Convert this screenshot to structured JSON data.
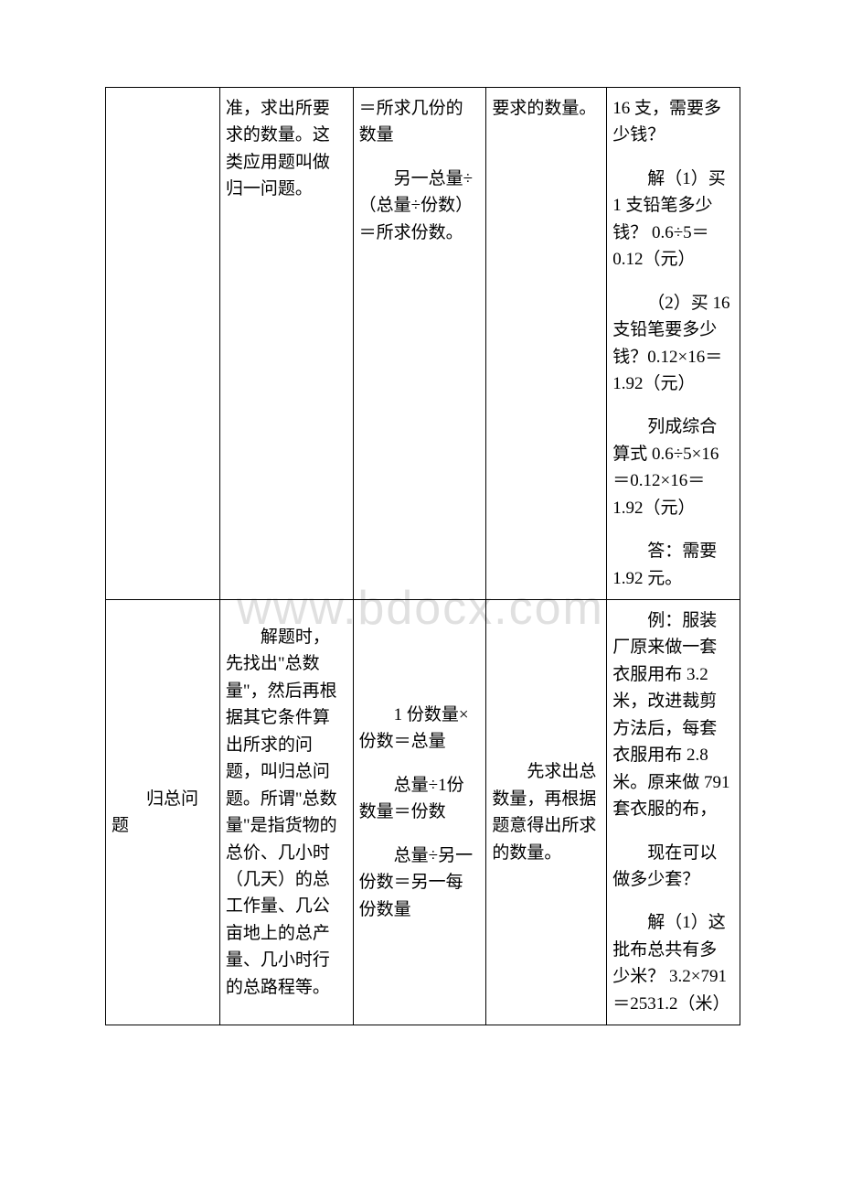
{
  "watermark": "www.bdocx.com",
  "table": {
    "row1": {
      "col1": "",
      "col2": {
        "p1": "准，求出所要求的数量。这类应用题叫做归一问题。"
      },
      "col3": {
        "p1": "＝所求几份的数量",
        "p2": "另一总量÷（总量÷份数）＝所求份数。"
      },
      "col4": {
        "p1": "要求的数量。"
      },
      "col5": {
        "p1": "16 支，需要多少钱？",
        "p2": "解（1）买 1 支铅笔多少钱？ 0.6÷5＝0.12（元）",
        "p3": "（2）买 16 支铅笔要多少钱？0.12×16＝1.92（元）",
        "p4": "列成综合算式 0.6÷5×16＝0.12×16＝1.92（元）",
        "p5": "答：需要 1.92 元。"
      }
    },
    "row2": {
      "col1": {
        "p1": "归总问题"
      },
      "col2": {
        "p1": "解题时，先找出\"总数量\"，然后再根据其它条件算出所求的问题，叫归总问题。所谓\"总数量\"是指货物的总价、几小时（几天）的总工作量、几公亩地上的总产量、几小时行的总路程等。"
      },
      "col3": {
        "p1": "1 份数量×份数＝总量",
        "p2": "总量÷1份数量＝份数",
        "p3": "总量÷另一份数＝另一每份数量"
      },
      "col4": {
        "p1": "先求出总数量，再根据题意得出所求的数量。"
      },
      "col5": {
        "p1": "例：服装厂原来做一套衣服用布 3.2 米，改进裁剪方法后，每套衣服用布 2.8 米。原来做 791 套衣服的布，",
        "p2": "现在可以做多少套？",
        "p3": "解（1）这批布总共有多少米？ 3.2×791＝2531.2（米）"
      }
    }
  }
}
